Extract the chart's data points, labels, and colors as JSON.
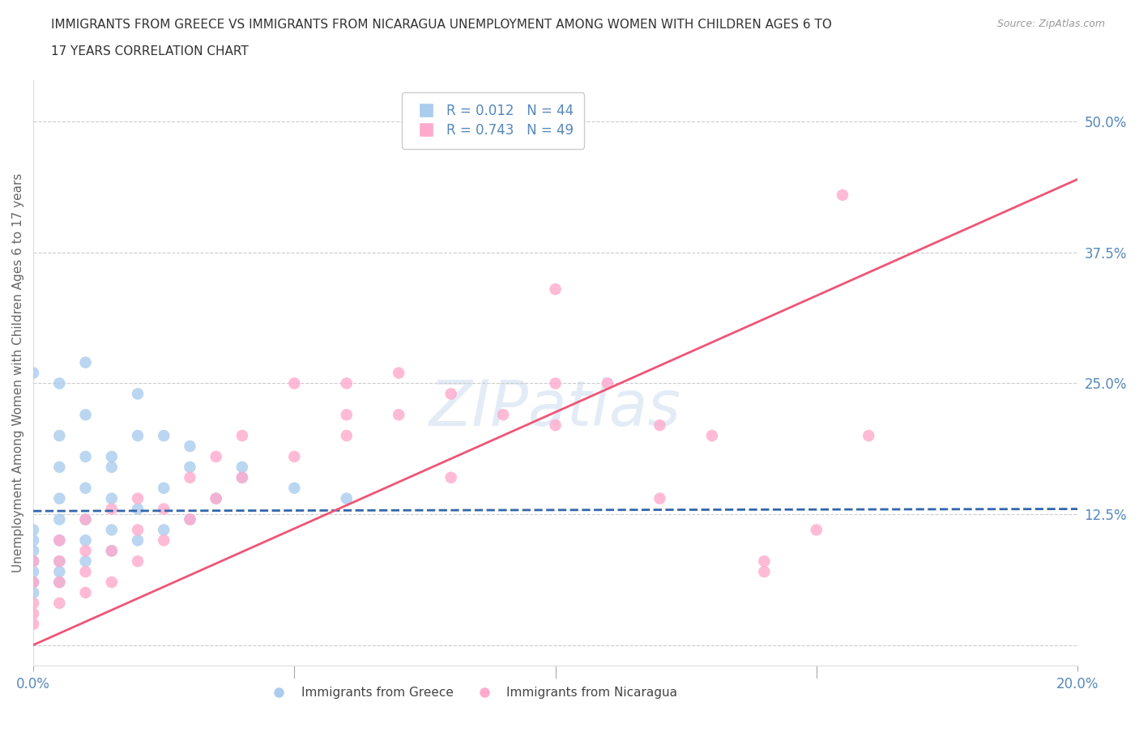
{
  "title_line1": "IMMIGRANTS FROM GREECE VS IMMIGRANTS FROM NICARAGUA UNEMPLOYMENT AMONG WOMEN WITH CHILDREN AGES 6 TO",
  "title_line2": "17 YEARS CORRELATION CHART",
  "source_text": "Source: ZipAtlas.com",
  "ylabel": "Unemployment Among Women with Children Ages 6 to 17 years",
  "watermark": "ZIPatlas",
  "greece_R": 0.012,
  "greece_N": 44,
  "nicaragua_R": 0.743,
  "nicaragua_N": 49,
  "xlim": [
    0.0,
    0.2
  ],
  "ylim": [
    -0.02,
    0.54
  ],
  "yticks": [
    0.0,
    0.125,
    0.25,
    0.375,
    0.5
  ],
  "ytick_labels": [
    "",
    "12.5%",
    "25.0%",
    "37.5%",
    "50.0%"
  ],
  "xticks": [
    0.0,
    0.05,
    0.1,
    0.15,
    0.2
  ],
  "xtick_labels": [
    "0.0%",
    "",
    "",
    "",
    "20.0%"
  ],
  "axis_color": "#5588bb",
  "grid_color": "#cccccc",
  "greece_color": "#aaccee",
  "nicaragua_color": "#ffaacc",
  "greece_line_color": "#3366aa",
  "nicaragua_line_color": "#ee5577",
  "background_color": "#ffffff",
  "greece_x": [
    0.0,
    0.0,
    0.0,
    0.0,
    0.0,
    0.0,
    0.0,
    0.005,
    0.005,
    0.005,
    0.005,
    0.005,
    0.005,
    0.005,
    0.005,
    0.01,
    0.01,
    0.01,
    0.01,
    0.01,
    0.01,
    0.015,
    0.015,
    0.015,
    0.015,
    0.02,
    0.02,
    0.02,
    0.025,
    0.025,
    0.03,
    0.03,
    0.035,
    0.04,
    0.04,
    0.05,
    0.06,
    0.03,
    0.02,
    0.01,
    0.005,
    0.0,
    0.015,
    0.025
  ],
  "greece_y": [
    0.05,
    0.06,
    0.07,
    0.08,
    0.09,
    0.1,
    0.11,
    0.06,
    0.07,
    0.08,
    0.1,
    0.12,
    0.14,
    0.17,
    0.2,
    0.08,
    0.1,
    0.12,
    0.15,
    0.18,
    0.22,
    0.09,
    0.11,
    0.14,
    0.17,
    0.1,
    0.13,
    0.2,
    0.11,
    0.15,
    0.12,
    0.17,
    0.14,
    0.16,
    0.17,
    0.15,
    0.14,
    0.19,
    0.24,
    0.27,
    0.25,
    0.26,
    0.18,
    0.2
  ],
  "nicaragua_x": [
    0.0,
    0.0,
    0.0,
    0.0,
    0.0,
    0.005,
    0.005,
    0.005,
    0.005,
    0.01,
    0.01,
    0.01,
    0.01,
    0.015,
    0.015,
    0.015,
    0.02,
    0.02,
    0.02,
    0.025,
    0.025,
    0.03,
    0.03,
    0.035,
    0.035,
    0.04,
    0.04,
    0.05,
    0.05,
    0.06,
    0.06,
    0.07,
    0.07,
    0.08,
    0.09,
    0.1,
    0.1,
    0.11,
    0.12,
    0.13,
    0.14,
    0.15,
    0.155,
    0.16,
    0.06,
    0.08,
    0.1,
    0.12,
    0.14
  ],
  "nicaragua_y": [
    0.02,
    0.03,
    0.04,
    0.06,
    0.08,
    0.04,
    0.06,
    0.08,
    0.1,
    0.05,
    0.07,
    0.09,
    0.12,
    0.06,
    0.09,
    0.13,
    0.08,
    0.11,
    0.14,
    0.1,
    0.13,
    0.12,
    0.16,
    0.14,
    0.18,
    0.16,
    0.2,
    0.18,
    0.25,
    0.2,
    0.25,
    0.22,
    0.26,
    0.24,
    0.22,
    0.25,
    0.34,
    0.25,
    0.21,
    0.2,
    0.08,
    0.11,
    0.43,
    0.2,
    0.22,
    0.16,
    0.21,
    0.14,
    0.07
  ],
  "greece_line_y_at_0": 0.128,
  "greece_line_y_at_20": 0.13,
  "nicaragua_line_y_at_0": 0.0,
  "nicaragua_line_y_at_20": 0.445
}
